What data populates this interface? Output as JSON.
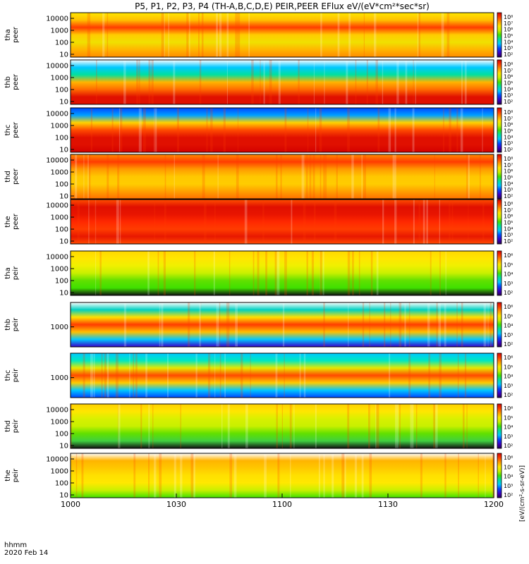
{
  "chart_data": {
    "type": "heatmap",
    "title": "P5, P1, P2, P3, P4 (TH-A,B,C,D,E) PEIR,PEER EFlux eV/(eV*cm²*sec*sr)",
    "xlabel_lines": [
      "hhmm",
      "2020 Feb 14"
    ],
    "x_ticks": [
      "1000",
      "1030",
      "1100",
      "1130",
      "1200"
    ],
    "x_tick_values": [
      0,
      30,
      60,
      90,
      120
    ],
    "x_range_minutes": [
      0,
      120
    ],
    "colorscale": "rainbow (purple-blue-cyan-green-yellow-red)",
    "colorbar_label": "[eV/(cm²-s-sr-eV)]",
    "panels": [
      {
        "label": [
          "tha",
          "peer"
        ],
        "y_ticks": [
          "10000",
          "1000",
          "100",
          "10"
        ],
        "y_log": true,
        "cbar_ticks": [
          "10⁸",
          "10⁷",
          "10⁶",
          "10⁵",
          "10⁴",
          "10³",
          "10²"
        ]
      },
      {
        "label": [
          "thb",
          "peer"
        ],
        "y_ticks": [
          "10000",
          "1000",
          "100",
          "10"
        ],
        "y_log": true,
        "cbar_ticks": [
          "10⁸",
          "10⁷",
          "10⁶",
          "10⁵",
          "10⁴",
          "10³",
          "10²"
        ]
      },
      {
        "label": [
          "thc",
          "peer"
        ],
        "y_ticks": [
          "10000",
          "1000",
          "100",
          "10"
        ],
        "y_log": true,
        "cbar_ticks": [
          "10⁸",
          "10⁷",
          "10⁶",
          "10⁵",
          "10⁴",
          "10³",
          "10²"
        ]
      },
      {
        "label": [
          "thd",
          "peer"
        ],
        "y_ticks": [
          "10000",
          "1000",
          "100",
          "10"
        ],
        "y_log": true,
        "cbar_ticks": [
          "10⁸",
          "10⁷",
          "10⁶",
          "10⁵",
          "10⁴",
          "10³",
          "10²"
        ]
      },
      {
        "label": [
          "the",
          "peer"
        ],
        "y_ticks": [
          "10000",
          "1000",
          "100",
          "10"
        ],
        "y_log": true,
        "cbar_ticks": [
          "10⁸",
          "10⁷",
          "10⁶",
          "10⁵",
          "10⁴",
          "10³",
          "10²"
        ]
      },
      {
        "label": [
          "tha",
          "peir"
        ],
        "y_ticks": [
          "10000",
          "1000",
          "100",
          "10"
        ],
        "y_log": true,
        "cbar_ticks": [
          "10⁶",
          "10⁵",
          "10⁴",
          "10³",
          "10²"
        ]
      },
      {
        "label": [
          "thb",
          "peir"
        ],
        "y_ticks": [
          "1000"
        ],
        "y_log": true,
        "cbar_ticks": [
          "10⁶",
          "10⁵",
          "10⁴",
          "10³",
          "10²"
        ]
      },
      {
        "label": [
          "thc",
          "peir"
        ],
        "y_ticks": [
          "1000"
        ],
        "y_log": true,
        "cbar_ticks": [
          "10⁶",
          "10⁵",
          "10⁴",
          "10³",
          "10²"
        ]
      },
      {
        "label": [
          "thd",
          "peir"
        ],
        "y_ticks": [
          "10000",
          "1000",
          "100",
          "10"
        ],
        "y_log": true,
        "cbar_ticks": [
          "10⁶",
          "10⁵",
          "10⁴",
          "10³",
          "10²"
        ]
      },
      {
        "label": [
          "the",
          "peir"
        ],
        "y_ticks": [
          "10000",
          "1000",
          "100",
          "10"
        ],
        "y_log": true,
        "cbar_ticks": [
          "10⁶",
          "10⁵",
          "10⁴",
          "10³",
          "10²"
        ]
      }
    ]
  }
}
